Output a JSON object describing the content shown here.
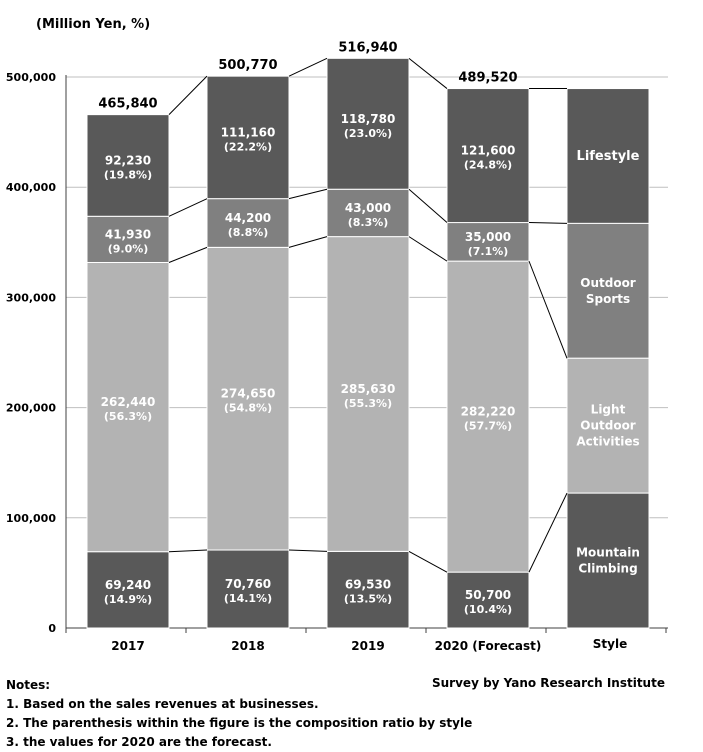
{
  "unit_label": "(Million Yen, %)",
  "chart_data": {
    "type": "bar",
    "stacked": true,
    "categories": [
      "2017",
      "2018",
      "2019",
      "2020 (Forecast)"
    ],
    "series": [
      {
        "name": "Mountain Climbing",
        "values": [
          69240,
          70760,
          69530,
          50700
        ],
        "shares": [
          "(14.9%)",
          "(14.1%)",
          "(13.5%)",
          "(10.4%)"
        ],
        "color": "#595959"
      },
      {
        "name": "Light Outdoor Activities",
        "values": [
          262440,
          274650,
          285630,
          282220
        ],
        "shares": [
          "(56.3%)",
          "(54.8%)",
          "(55.3%)",
          "(57.7%)"
        ],
        "color": "#b3b3b3"
      },
      {
        "name": "Outdoor Sports",
        "values": [
          41930,
          44200,
          43000,
          35000
        ],
        "shares": [
          "(9.0%)",
          "(8.8%)",
          "(8.3%)",
          "(7.1%)"
        ],
        "color": "#808080"
      },
      {
        "name": "Lifestyle",
        "values": [
          92230,
          111160,
          118780,
          121600
        ],
        "shares": [
          "(19.8%)",
          "(22.2%)",
          "(23.0%)",
          "(24.8%)"
        ],
        "color": "#595959"
      }
    ],
    "totals": [
      465840,
      500770,
      516940,
      489520
    ],
    "ylim": [
      0,
      500000
    ],
    "yticks": [
      "0",
      "100,000",
      "200,000",
      "300,000",
      "400,000",
      "500,000"
    ],
    "grid": true,
    "legend_column": {
      "label": "Style",
      "items": [
        "Lifestyle",
        "Outdoor Sports",
        "Light Outdoor Activities",
        "Mountain Climbing"
      ]
    }
  },
  "notes": {
    "heading": "Notes:",
    "items": [
      "1. Based on the sales revenues at businesses.",
      "2. The parenthesis within the figure is the composition ratio by style",
      "3. the values for 2020 are the forecast."
    ]
  },
  "source": "Survey by Yano Research Institute"
}
